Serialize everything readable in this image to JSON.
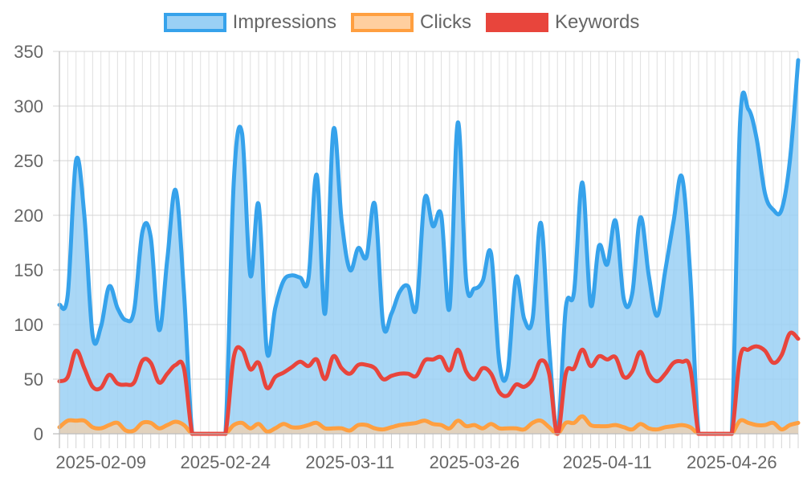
{
  "chart_data": {
    "type": "area",
    "x_axis": {
      "tick_labels": [
        "2025-02-09",
        "2025-02-24",
        "2025-03-11",
        "2025-03-26",
        "2025-04-11",
        "2025-04-26"
      ]
    },
    "y_axis": {
      "min": 0,
      "max": 350,
      "ticks": [
        0,
        50,
        100,
        150,
        200,
        250,
        300,
        350
      ]
    },
    "grid": true,
    "legend_position": "top",
    "series": [
      {
        "name": "Impressions",
        "color": "#36a2eb",
        "fill": "#9ad0f5",
        "points": [
          [
            "2025-02-04",
            118
          ],
          [
            "2025-02-05",
            127
          ],
          [
            "2025-02-06",
            250
          ],
          [
            "2025-02-07",
            200
          ],
          [
            "2025-02-08",
            90
          ],
          [
            "2025-02-09",
            98
          ],
          [
            "2025-02-10",
            135
          ],
          [
            "2025-02-11",
            115
          ],
          [
            "2025-02-12",
            104
          ],
          [
            "2025-02-13",
            113
          ],
          [
            "2025-02-14",
            185
          ],
          [
            "2025-02-15",
            180
          ],
          [
            "2025-02-16",
            95
          ],
          [
            "2025-02-17",
            160
          ],
          [
            "2025-02-18",
            223
          ],
          [
            "2025-02-19",
            130
          ],
          [
            "2025-02-20",
            0
          ],
          [
            "2025-02-21",
            0
          ],
          [
            "2025-02-22",
            0
          ],
          [
            "2025-02-23",
            0
          ],
          [
            "2025-02-24",
            0
          ],
          [
            "2025-02-25",
            230
          ],
          [
            "2025-02-26",
            275
          ],
          [
            "2025-02-27",
            145
          ],
          [
            "2025-02-28",
            210
          ],
          [
            "2025-03-01",
            75
          ],
          [
            "2025-03-02",
            115
          ],
          [
            "2025-03-03",
            140
          ],
          [
            "2025-03-04",
            145
          ],
          [
            "2025-03-05",
            143
          ],
          [
            "2025-03-06",
            142
          ],
          [
            "2025-03-07",
            237
          ],
          [
            "2025-03-08",
            110
          ],
          [
            "2025-03-09",
            278
          ],
          [
            "2025-03-10",
            195
          ],
          [
            "2025-03-11",
            150
          ],
          [
            "2025-03-12",
            170
          ],
          [
            "2025-03-13",
            162
          ],
          [
            "2025-03-14",
            210
          ],
          [
            "2025-03-15",
            100
          ],
          [
            "2025-03-16",
            110
          ],
          [
            "2025-03-17",
            130
          ],
          [
            "2025-03-18",
            135
          ],
          [
            "2025-03-19",
            115
          ],
          [
            "2025-03-20",
            215
          ],
          [
            "2025-03-21",
            190
          ],
          [
            "2025-03-22",
            200
          ],
          [
            "2025-03-23",
            115
          ],
          [
            "2025-03-24",
            285
          ],
          [
            "2025-03-25",
            140
          ],
          [
            "2025-03-26",
            133
          ],
          [
            "2025-03-27",
            140
          ],
          [
            "2025-03-28",
            165
          ],
          [
            "2025-03-29",
            65
          ],
          [
            "2025-03-30",
            57
          ],
          [
            "2025-03-31",
            143
          ],
          [
            "2025-04-01",
            105
          ],
          [
            "2025-04-02",
            105
          ],
          [
            "2025-04-03",
            193
          ],
          [
            "2025-04-04",
            80
          ],
          [
            "2025-04-05",
            0
          ],
          [
            "2025-04-06",
            115
          ],
          [
            "2025-04-07",
            130
          ],
          [
            "2025-04-08",
            230
          ],
          [
            "2025-04-09",
            118
          ],
          [
            "2025-04-10",
            172
          ],
          [
            "2025-04-11",
            155
          ],
          [
            "2025-04-12",
            195
          ],
          [
            "2025-04-13",
            123
          ],
          [
            "2025-04-14",
            128
          ],
          [
            "2025-04-15",
            198
          ],
          [
            "2025-04-16",
            145
          ],
          [
            "2025-04-17",
            108
          ],
          [
            "2025-04-18",
            150
          ],
          [
            "2025-04-19",
            195
          ],
          [
            "2025-04-20",
            235
          ],
          [
            "2025-04-21",
            145
          ],
          [
            "2025-04-22",
            0
          ],
          [
            "2025-04-23",
            0
          ],
          [
            "2025-04-24",
            0
          ],
          [
            "2025-04-25",
            0
          ],
          [
            "2025-04-26",
            0
          ],
          [
            "2025-04-27",
            285
          ],
          [
            "2025-04-28",
            297
          ],
          [
            "2025-04-29",
            270
          ],
          [
            "2025-04-30",
            220
          ],
          [
            "2025-05-01",
            205
          ],
          [
            "2025-05-02",
            205
          ],
          [
            "2025-05-03",
            250
          ],
          [
            "2025-05-04",
            342
          ]
        ]
      },
      {
        "name": "Clicks",
        "color": "#ff9f40",
        "fill": "#ffcf9f",
        "points": [
          [
            "2025-02-04",
            6
          ],
          [
            "2025-02-05",
            12
          ],
          [
            "2025-02-06",
            12
          ],
          [
            "2025-02-07",
            12
          ],
          [
            "2025-02-08",
            6
          ],
          [
            "2025-02-09",
            5
          ],
          [
            "2025-02-10",
            8
          ],
          [
            "2025-02-11",
            10
          ],
          [
            "2025-02-12",
            3
          ],
          [
            "2025-02-13",
            3
          ],
          [
            "2025-02-14",
            10
          ],
          [
            "2025-02-15",
            10
          ],
          [
            "2025-02-16",
            5
          ],
          [
            "2025-02-17",
            8
          ],
          [
            "2025-02-18",
            11
          ],
          [
            "2025-02-19",
            8
          ],
          [
            "2025-02-20",
            0
          ],
          [
            "2025-02-21",
            0
          ],
          [
            "2025-02-22",
            0
          ],
          [
            "2025-02-23",
            0
          ],
          [
            "2025-02-24",
            0
          ],
          [
            "2025-02-25",
            8
          ],
          [
            "2025-02-26",
            10
          ],
          [
            "2025-02-27",
            5
          ],
          [
            "2025-02-28",
            9
          ],
          [
            "2025-03-01",
            2
          ],
          [
            "2025-03-02",
            5
          ],
          [
            "2025-03-03",
            9
          ],
          [
            "2025-03-04",
            6
          ],
          [
            "2025-03-05",
            6
          ],
          [
            "2025-03-06",
            8
          ],
          [
            "2025-03-07",
            10
          ],
          [
            "2025-03-08",
            5
          ],
          [
            "2025-03-09",
            5
          ],
          [
            "2025-03-10",
            5
          ],
          [
            "2025-03-11",
            3
          ],
          [
            "2025-03-12",
            8
          ],
          [
            "2025-03-13",
            8
          ],
          [
            "2025-03-14",
            5
          ],
          [
            "2025-03-15",
            4
          ],
          [
            "2025-03-16",
            6
          ],
          [
            "2025-03-17",
            8
          ],
          [
            "2025-03-18",
            9
          ],
          [
            "2025-03-19",
            10
          ],
          [
            "2025-03-20",
            12
          ],
          [
            "2025-03-21",
            9
          ],
          [
            "2025-03-22",
            8
          ],
          [
            "2025-03-23",
            5
          ],
          [
            "2025-03-24",
            12
          ],
          [
            "2025-03-25",
            7
          ],
          [
            "2025-03-26",
            8
          ],
          [
            "2025-03-27",
            5
          ],
          [
            "2025-03-28",
            9
          ],
          [
            "2025-03-29",
            5
          ],
          [
            "2025-03-30",
            5
          ],
          [
            "2025-03-31",
            5
          ],
          [
            "2025-04-01",
            4
          ],
          [
            "2025-04-02",
            10
          ],
          [
            "2025-04-03",
            12
          ],
          [
            "2025-04-04",
            6
          ],
          [
            "2025-04-05",
            0
          ],
          [
            "2025-04-06",
            10
          ],
          [
            "2025-04-07",
            10
          ],
          [
            "2025-04-08",
            16
          ],
          [
            "2025-04-09",
            8
          ],
          [
            "2025-04-10",
            7
          ],
          [
            "2025-04-11",
            7
          ],
          [
            "2025-04-12",
            8
          ],
          [
            "2025-04-13",
            6
          ],
          [
            "2025-04-14",
            4
          ],
          [
            "2025-04-15",
            9
          ],
          [
            "2025-04-16",
            5
          ],
          [
            "2025-04-17",
            4
          ],
          [
            "2025-04-18",
            6
          ],
          [
            "2025-04-19",
            7
          ],
          [
            "2025-04-20",
            8
          ],
          [
            "2025-04-21",
            6
          ],
          [
            "2025-04-22",
            0
          ],
          [
            "2025-04-23",
            0
          ],
          [
            "2025-04-24",
            0
          ],
          [
            "2025-04-25",
            0
          ],
          [
            "2025-04-26",
            0
          ],
          [
            "2025-04-27",
            12
          ],
          [
            "2025-04-28",
            10
          ],
          [
            "2025-04-29",
            8
          ],
          [
            "2025-04-30",
            8
          ],
          [
            "2025-05-01",
            10
          ],
          [
            "2025-05-02",
            4
          ],
          [
            "2025-05-03",
            8
          ],
          [
            "2025-05-04",
            10
          ]
        ]
      },
      {
        "name": "Keywords",
        "color": "#e8453c",
        "fill": "",
        "points": [
          [
            "2025-02-04",
            48
          ],
          [
            "2025-02-05",
            52
          ],
          [
            "2025-02-06",
            76
          ],
          [
            "2025-02-07",
            60
          ],
          [
            "2025-02-08",
            43
          ],
          [
            "2025-02-09",
            42
          ],
          [
            "2025-02-10",
            54
          ],
          [
            "2025-02-11",
            46
          ],
          [
            "2025-02-12",
            45
          ],
          [
            "2025-02-13",
            47
          ],
          [
            "2025-02-14",
            67
          ],
          [
            "2025-02-15",
            65
          ],
          [
            "2025-02-16",
            47
          ],
          [
            "2025-02-17",
            55
          ],
          [
            "2025-02-18",
            63
          ],
          [
            "2025-02-19",
            60
          ],
          [
            "2025-02-20",
            0
          ],
          [
            "2025-02-21",
            0
          ],
          [
            "2025-02-22",
            0
          ],
          [
            "2025-02-23",
            0
          ],
          [
            "2025-02-24",
            0
          ],
          [
            "2025-02-25",
            70
          ],
          [
            "2025-02-26",
            77
          ],
          [
            "2025-02-27",
            59
          ],
          [
            "2025-02-28",
            65
          ],
          [
            "2025-03-01",
            42
          ],
          [
            "2025-03-02",
            52
          ],
          [
            "2025-03-03",
            56
          ],
          [
            "2025-03-04",
            61
          ],
          [
            "2025-03-05",
            66
          ],
          [
            "2025-03-06",
            62
          ],
          [
            "2025-03-07",
            68
          ],
          [
            "2025-03-08",
            50
          ],
          [
            "2025-03-09",
            71
          ],
          [
            "2025-03-10",
            60
          ],
          [
            "2025-03-11",
            55
          ],
          [
            "2025-03-12",
            63
          ],
          [
            "2025-03-13",
            63
          ],
          [
            "2025-03-14",
            60
          ],
          [
            "2025-03-15",
            50
          ],
          [
            "2025-03-16",
            53
          ],
          [
            "2025-03-17",
            55
          ],
          [
            "2025-03-18",
            55
          ],
          [
            "2025-03-19",
            53
          ],
          [
            "2025-03-20",
            67
          ],
          [
            "2025-03-21",
            68
          ],
          [
            "2025-03-22",
            70
          ],
          [
            "2025-03-23",
            58
          ],
          [
            "2025-03-24",
            77
          ],
          [
            "2025-03-25",
            57
          ],
          [
            "2025-03-26",
            50
          ],
          [
            "2025-03-27",
            60
          ],
          [
            "2025-03-28",
            55
          ],
          [
            "2025-03-29",
            38
          ],
          [
            "2025-03-30",
            35
          ],
          [
            "2025-03-31",
            45
          ],
          [
            "2025-04-01",
            43
          ],
          [
            "2025-04-02",
            50
          ],
          [
            "2025-04-03",
            67
          ],
          [
            "2025-04-04",
            55
          ],
          [
            "2025-04-05",
            0
          ],
          [
            "2025-04-06",
            55
          ],
          [
            "2025-04-07",
            60
          ],
          [
            "2025-04-08",
            77
          ],
          [
            "2025-04-09",
            62
          ],
          [
            "2025-04-10",
            71
          ],
          [
            "2025-04-11",
            68
          ],
          [
            "2025-04-12",
            70
          ],
          [
            "2025-04-13",
            52
          ],
          [
            "2025-04-14",
            57
          ],
          [
            "2025-04-15",
            75
          ],
          [
            "2025-04-16",
            55
          ],
          [
            "2025-04-17",
            48
          ],
          [
            "2025-04-18",
            55
          ],
          [
            "2025-04-19",
            65
          ],
          [
            "2025-04-20",
            66
          ],
          [
            "2025-04-21",
            60
          ],
          [
            "2025-04-22",
            0
          ],
          [
            "2025-04-23",
            0
          ],
          [
            "2025-04-24",
            0
          ],
          [
            "2025-04-25",
            0
          ],
          [
            "2025-04-26",
            0
          ],
          [
            "2025-04-27",
            70
          ],
          [
            "2025-04-28",
            77
          ],
          [
            "2025-04-29",
            80
          ],
          [
            "2025-04-30",
            76
          ],
          [
            "2025-05-01",
            65
          ],
          [
            "2025-05-02",
            72
          ],
          [
            "2025-05-03",
            92
          ],
          [
            "2025-05-04",
            87
          ]
        ]
      }
    ]
  }
}
